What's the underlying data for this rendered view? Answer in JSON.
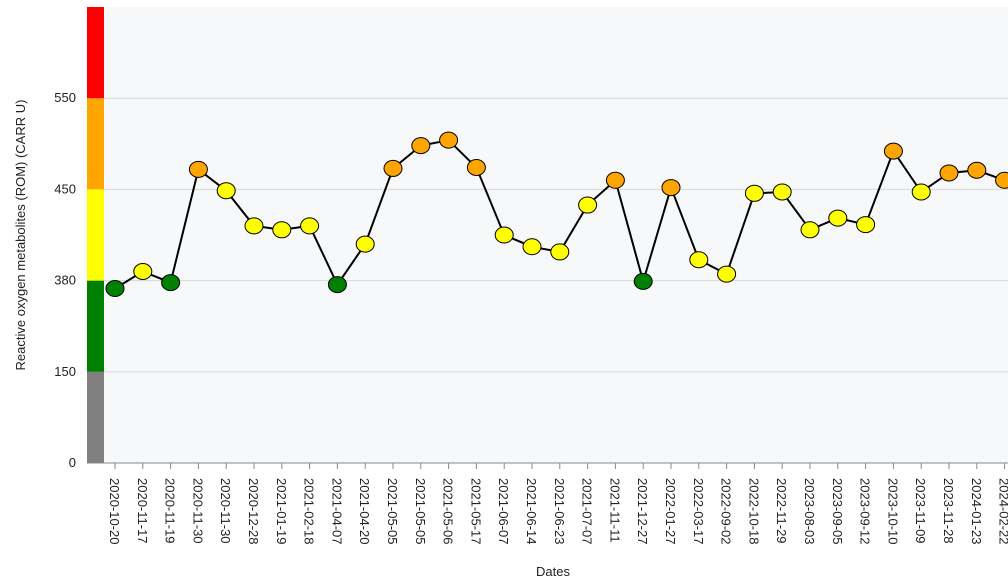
{
  "chart_data": {
    "type": "line",
    "x_label": "Dates",
    "y_label": "Reactive oxygen metabolites (ROM)  (CARR U)",
    "categories": [
      "2020-10-20",
      "2020-11-17",
      "2020-11-19",
      "2020-11-30",
      "2020-11-30",
      "2020-12-28",
      "2021-01-19",
      "2021-02-18",
      "2021-04-07",
      "2021-04-20",
      "2021-05-05",
      "2021-05-05",
      "2021-05-06",
      "2021-05-17",
      "2021-06-07",
      "2021-06-14",
      "2021-06-23",
      "2021-07-07",
      "2021-11-11",
      "2021-12-27",
      "2022-01-27",
      "2022-03-17",
      "2022-09-02",
      "2022-10-18",
      "2022-11-29",
      "2023-08-03",
      "2023-09-05",
      "2023-09-12",
      "2023-10-10",
      "2023-11-09",
      "2023-11-28",
      "2024-01-23",
      "2024-02-22"
    ],
    "values": [
      360,
      387,
      375,
      472,
      449,
      422,
      419,
      422,
      370,
      408,
      473,
      498,
      504,
      474,
      415,
      406,
      402,
      438,
      460,
      378,
      452,
      396,
      385,
      447,
      448,
      419,
      428,
      423,
      492,
      448,
      468,
      471,
      460
    ],
    "line_color": "#000000",
    "ylim": [
      0,
      650
    ],
    "yticks": [
      0,
      150,
      380,
      450,
      550
    ],
    "y_scale": "piecewise",
    "grid": true,
    "bands": [
      {
        "from": 0,
        "to": 150,
        "color": "#808080"
      },
      {
        "from": 150,
        "to": 380,
        "color": "#008000"
      },
      {
        "from": 380,
        "to": 450,
        "color": "#ffff00"
      },
      {
        "from": 450,
        "to": 550,
        "color": "#ffa500"
      },
      {
        "from": 550,
        "to": 650,
        "color": "#ff0000"
      }
    ]
  }
}
